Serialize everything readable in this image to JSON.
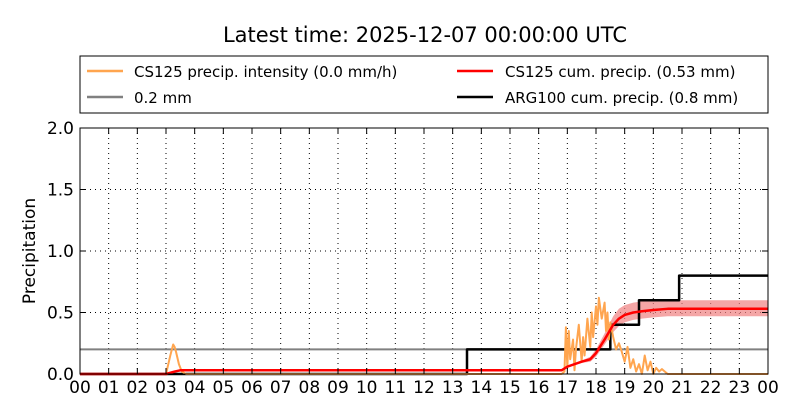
{
  "chart_data": {
    "type": "line",
    "title": "Latest time: 2025-12-07 00:00:00 UTC",
    "xlabel": "",
    "ylabel": "Precipitation",
    "xlim": [
      0,
      24
    ],
    "ylim": [
      0,
      2.0
    ],
    "x_tick_labels": [
      "00",
      "01",
      "02",
      "03",
      "04",
      "05",
      "06",
      "07",
      "08",
      "09",
      "10",
      "11",
      "12",
      "13",
      "14",
      "15",
      "16",
      "17",
      "18",
      "19",
      "20",
      "21",
      "22",
      "23",
      "00"
    ],
    "y_tick_labels": [
      "0.0",
      "0.5",
      "1.0",
      "1.5",
      "2.0"
    ],
    "y_tick_values": [
      0,
      0.5,
      1.0,
      1.5,
      2.0
    ],
    "grid": true,
    "legend_position": "top",
    "legend": [
      {
        "label": "CS125 precip. intensity (0.0 mm/h)",
        "color": "#ffa54f"
      },
      {
        "label": "CS125 cum. precip. (0.53 mm)",
        "color": "#ff0000"
      },
      {
        "label": "0.2 mm",
        "color": "#808080"
      },
      {
        "label": "ARG100 cum. precip. (0.8 mm)",
        "color": "#000000"
      }
    ],
    "series": [
      {
        "name": "CS125 precip. intensity (0.0 mm/h)",
        "color": "#ffa54f",
        "x": [
          0,
          3.0,
          3.15,
          3.25,
          3.3,
          3.35,
          3.45,
          3.55,
          3.7,
          16.8,
          16.9,
          16.95,
          17.0,
          17.05,
          17.1,
          17.2,
          17.25,
          17.3,
          17.4,
          17.5,
          17.55,
          17.6,
          17.7,
          17.8,
          17.85,
          17.9,
          18.0,
          18.05,
          18.1,
          18.2,
          18.3,
          18.35,
          18.4,
          18.45,
          18.5,
          18.6,
          18.7,
          18.8,
          18.9,
          19.0,
          19.1,
          19.2,
          19.3,
          19.4,
          19.5,
          19.6,
          19.7,
          19.8,
          19.9,
          20.0,
          20.1,
          20.2,
          20.3,
          20.5,
          24
        ],
        "y": [
          0,
          0,
          0.15,
          0.24,
          0.22,
          0.18,
          0.08,
          0.02,
          0,
          0,
          0.02,
          0.38,
          0.05,
          0.35,
          0.12,
          0.28,
          0.03,
          0.2,
          0.4,
          0.1,
          0.3,
          0.15,
          0.45,
          0.22,
          0.5,
          0.3,
          0.55,
          0.4,
          0.62,
          0.45,
          0.58,
          0.35,
          0.5,
          0.28,
          0.42,
          0.3,
          0.2,
          0.25,
          0.18,
          0.1,
          0.22,
          0.05,
          0.12,
          0.02,
          0.08,
          0.0,
          0.15,
          0.03,
          0.1,
          0.0,
          0.05,
          0.02,
          0.04,
          0,
          0
        ]
      },
      {
        "name": "CS125 cum. precip. (0.53 mm)",
        "color": "#ff0000",
        "band_color": "#f08080",
        "x": [
          0,
          3.0,
          3.3,
          3.5,
          7.0,
          16.8,
          17.0,
          17.5,
          17.8,
          18.0,
          18.3,
          18.6,
          18.8,
          19.0,
          19.3,
          19.6,
          20.0,
          20.5,
          21.0,
          24
        ],
        "y": [
          0,
          0,
          0.02,
          0.03,
          0.03,
          0.03,
          0.06,
          0.1,
          0.12,
          0.17,
          0.28,
          0.4,
          0.45,
          0.48,
          0.5,
          0.51,
          0.52,
          0.53,
          0.53,
          0.53
        ],
        "band_upper": [
          0,
          0,
          0.02,
          0.03,
          0.03,
          0.03,
          0.06,
          0.11,
          0.14,
          0.2,
          0.33,
          0.47,
          0.53,
          0.56,
          0.58,
          0.59,
          0.59,
          0.6,
          0.6,
          0.6
        ],
        "band_lower": [
          0,
          0,
          0.02,
          0.03,
          0.03,
          0.03,
          0.05,
          0.09,
          0.1,
          0.14,
          0.24,
          0.34,
          0.39,
          0.42,
          0.44,
          0.45,
          0.46,
          0.47,
          0.47,
          0.47
        ]
      },
      {
        "name": "0.2 mm",
        "color": "#808080",
        "x": [
          0,
          24
        ],
        "y": [
          0.2,
          0.2
        ]
      },
      {
        "name": "ARG100 cum. precip. (0.8 mm)",
        "color": "#000000",
        "step": true,
        "x": [
          0,
          13.5,
          13.5,
          18.5,
          18.5,
          19.5,
          19.5,
          20.9,
          20.9,
          24
        ],
        "y": [
          0,
          0,
          0.2,
          0.2,
          0.4,
          0.4,
          0.6,
          0.6,
          0.8,
          0.8
        ]
      }
    ]
  }
}
